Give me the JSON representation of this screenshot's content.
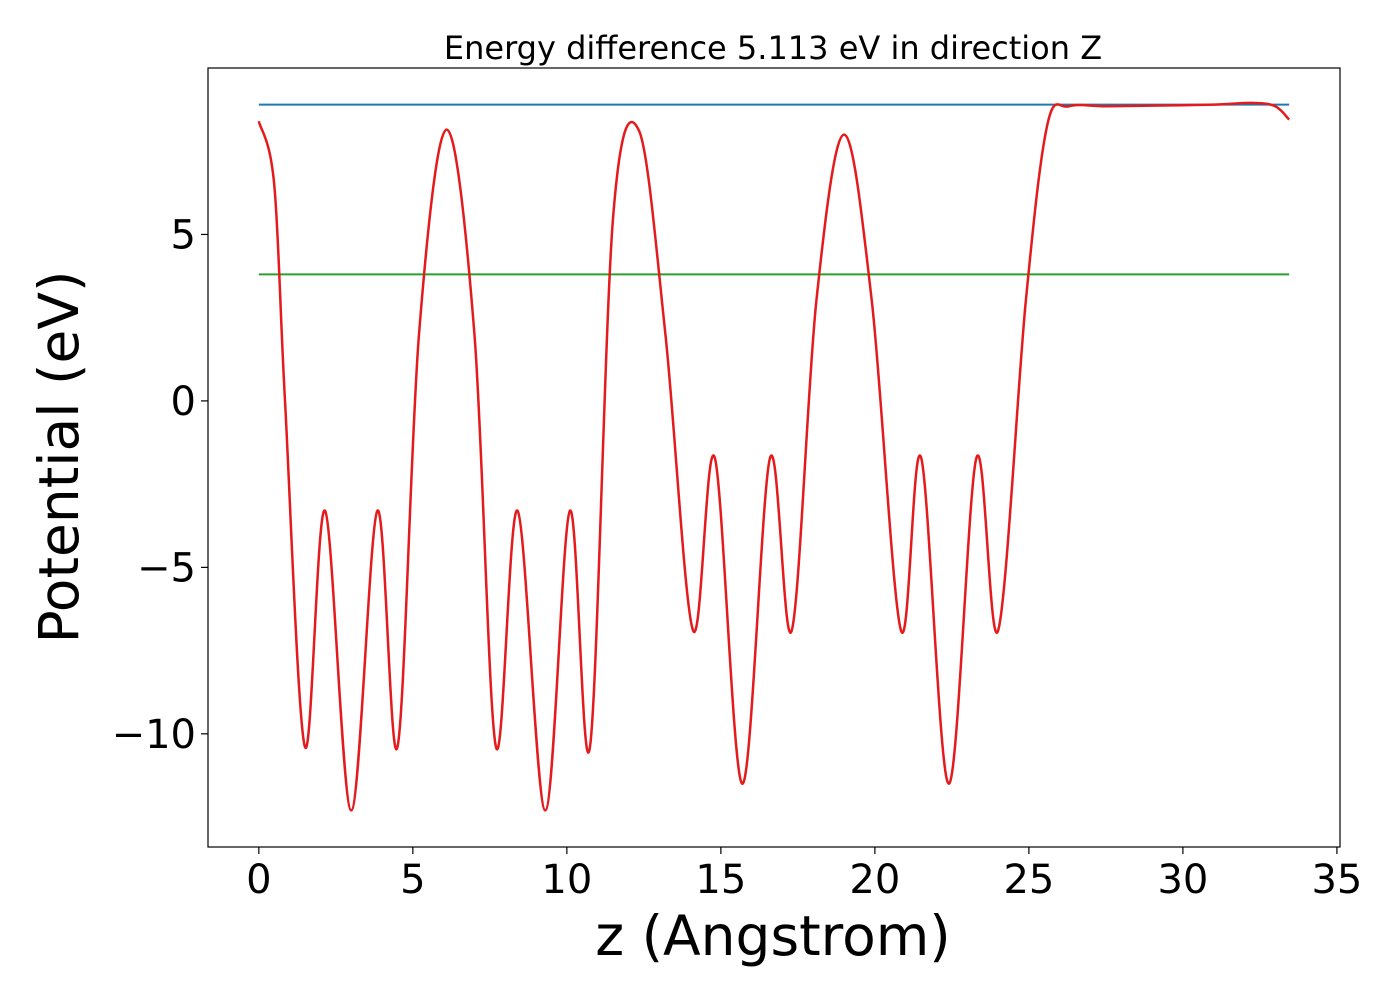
{
  "chart_data": {
    "type": "line",
    "title": "Energy difference 5.113 eV in direction Z",
    "xlabel": "z (Angstrom)",
    "ylabel": "Potential (eV)",
    "xlim": [
      -1.65,
      35.1
    ],
    "ylim": [
      -13.4,
      10.0
    ],
    "xticks": [
      0,
      5,
      10,
      15,
      20,
      25,
      30,
      35
    ],
    "yticks": [
      -10,
      -5,
      0,
      5
    ],
    "xtick_labels": [
      "0",
      "5",
      "10",
      "15",
      "20",
      "25",
      "30",
      "35"
    ],
    "ytick_labels": [
      "−10",
      "−5",
      "0",
      "5"
    ],
    "grid": false,
    "legend": "none",
    "series": [
      {
        "color": "#1f77b4",
        "style": "horizontal",
        "x": [
          0,
          33.45
        ],
        "y": [
          8.9,
          8.9
        ]
      },
      {
        "color": "#2ca02c",
        "style": "horizontal",
        "x": [
          0,
          33.45
        ],
        "y": [
          3.8,
          3.8
        ]
      },
      {
        "color": "#e41a1c",
        "style": "curve",
        "x": [
          0.0,
          0.5,
          0.85,
          1.5,
          2.15,
          3.0,
          3.85,
          4.5,
          5.2,
          6.1,
          7.0,
          7.7,
          8.4,
          9.3,
          10.1,
          10.75,
          11.5,
          12.35,
          13.2,
          14.1,
          14.8,
          15.7,
          16.6,
          17.3,
          18.1,
          19.0,
          19.9,
          20.85,
          21.5,
          22.4,
          23.3,
          24.0,
          24.9,
          25.6,
          26.3,
          27.5,
          29.0,
          31.0,
          32.3,
          33.0,
          33.45
        ],
        "y": [
          8.4,
          6.5,
          0.0,
          -10.4,
          -3.3,
          -12.3,
          -3.3,
          -10.4,
          2.0,
          8.15,
          2.0,
          -10.4,
          -3.3,
          -12.3,
          -3.3,
          -10.4,
          5.5,
          8.1,
          2.0,
          -6.9,
          -1.7,
          -11.5,
          -1.7,
          -6.9,
          3.0,
          8.0,
          3.0,
          -6.9,
          -1.7,
          -11.5,
          -1.7,
          -6.9,
          3.0,
          8.3,
          8.85,
          8.85,
          8.87,
          8.9,
          8.95,
          8.85,
          8.45
        ]
      }
    ]
  }
}
